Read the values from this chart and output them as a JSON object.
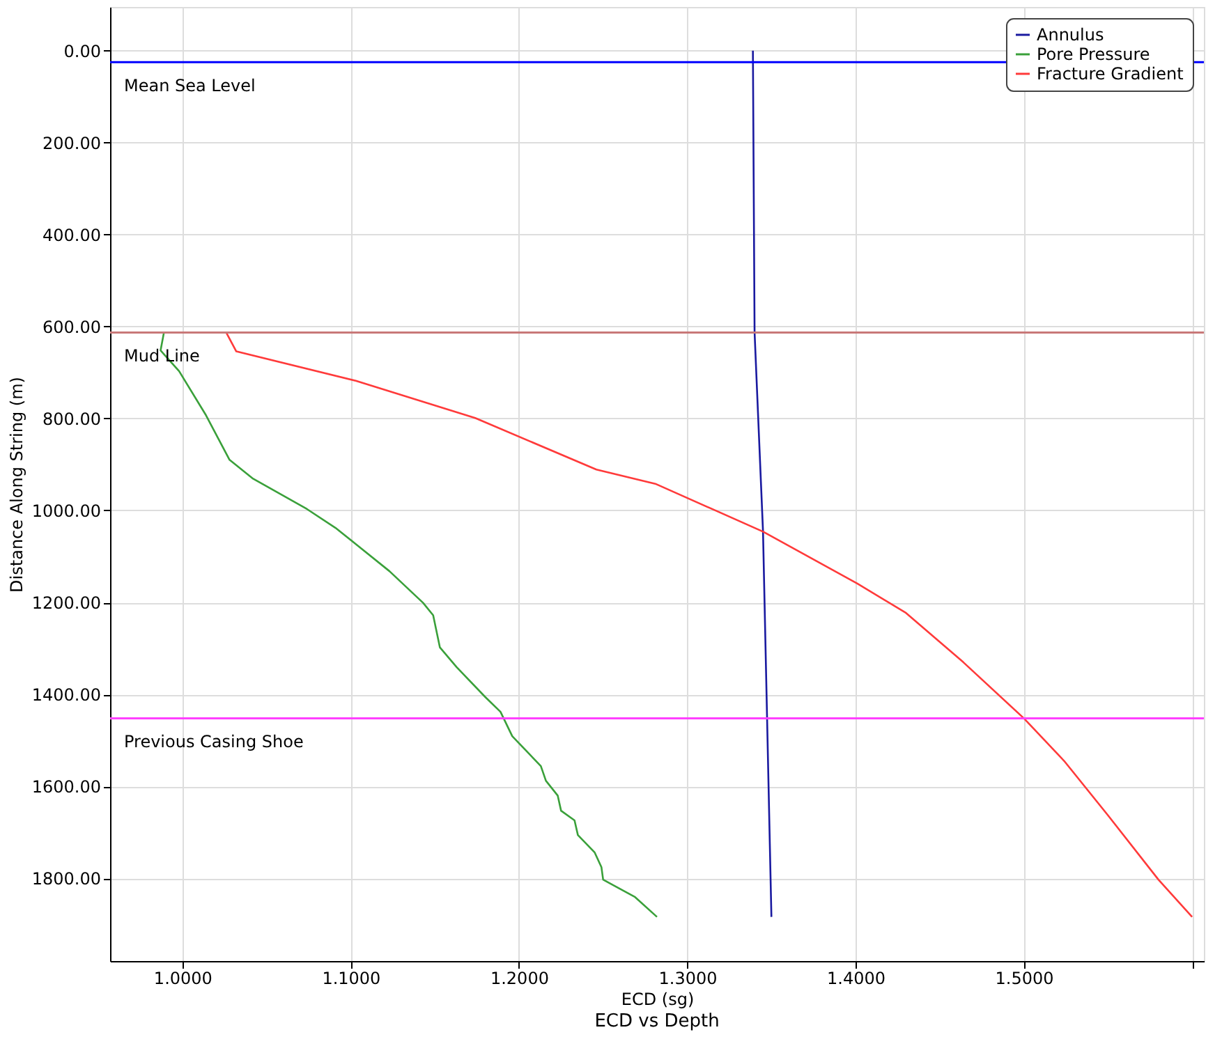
{
  "chart_data": {
    "type": "line",
    "title": "ECD vs Depth",
    "xlabel": "ECD (sg)",
    "ylabel": "Distance Along String (m)",
    "xlim": [
      0.957,
      1.607
    ],
    "ylim": [
      1980,
      -95
    ],
    "xticks": [
      {
        "value": 1.0,
        "label": "1.0000"
      },
      {
        "value": 1.1,
        "label": "1.1000"
      },
      {
        "value": 1.2,
        "label": "1.2000"
      },
      {
        "value": 1.3,
        "label": "1.3000"
      },
      {
        "value": 1.4,
        "label": "1.4000"
      },
      {
        "value": 1.5,
        "label": "1.5000"
      },
      {
        "value": 1.6,
        "label": null
      }
    ],
    "yticks": [
      {
        "value": 0,
        "label": "0.00"
      },
      {
        "value": 200,
        "label": "200.00"
      },
      {
        "value": 400,
        "label": "400.00"
      },
      {
        "value": 600,
        "label": "600.00"
      },
      {
        "value": 800,
        "label": "800.00"
      },
      {
        "value": 1000,
        "label": "1000.00"
      },
      {
        "value": 1200,
        "label": "1200.00"
      },
      {
        "value": 1400,
        "label": "1400.00"
      },
      {
        "value": 1600,
        "label": "1600.00"
      },
      {
        "value": 1800,
        "label": "1800.00"
      }
    ],
    "grid": true,
    "legend": "top right",
    "marker": "none",
    "line_style": "solid",
    "ref_lines": [
      {
        "axis": "y",
        "value": 25,
        "label": "Mean Sea Level",
        "color": "#0000ff"
      },
      {
        "axis": "y",
        "value": 613,
        "label": "Mud Line",
        "color": "#c87878"
      },
      {
        "axis": "y",
        "value": 1452,
        "label": "Previous Casing Shoe",
        "color": "#ff40ff"
      }
    ],
    "series": [
      {
        "name": "Annulus",
        "color": "#1a1aa0",
        "x": [
          1.339,
          1.34,
          1.345,
          1.35
        ],
        "values": [
          0,
          613,
          1045,
          1884
        ]
      },
      {
        "name": "Pore Pressure",
        "color": "#3aa03a",
        "x": [
          0.989,
          0.987,
          0.998,
          1.014,
          1.028,
          1.042,
          1.074,
          1.091,
          1.103,
          1.123,
          1.143,
          1.149,
          1.153,
          1.163,
          1.18,
          1.189,
          1.196,
          1.213,
          1.216,
          1.223,
          1.225,
          1.233,
          1.235,
          1.245,
          1.249,
          1.25,
          1.269,
          1.282
        ],
        "values": [
          613,
          652,
          697,
          793,
          890,
          931,
          997,
          1038,
          1073,
          1132,
          1201,
          1228,
          1298,
          1341,
          1406,
          1438,
          1491,
          1556,
          1588,
          1620,
          1653,
          1674,
          1706,
          1744,
          1776,
          1803,
          1841,
          1884
        ]
      },
      {
        "name": "Fracture Gradient",
        "color": "#ff3a3a",
        "x": [
          1.026,
          1.032,
          1.103,
          1.174,
          1.246,
          1.281,
          1.345,
          1.401,
          1.43,
          1.464,
          1.5,
          1.524,
          1.55,
          1.58,
          1.6
        ],
        "values": [
          613,
          654,
          718,
          799,
          911,
          942,
          1046,
          1159,
          1223,
          1330,
          1452,
          1545,
          1663,
          1803,
          1884
        ]
      }
    ]
  }
}
